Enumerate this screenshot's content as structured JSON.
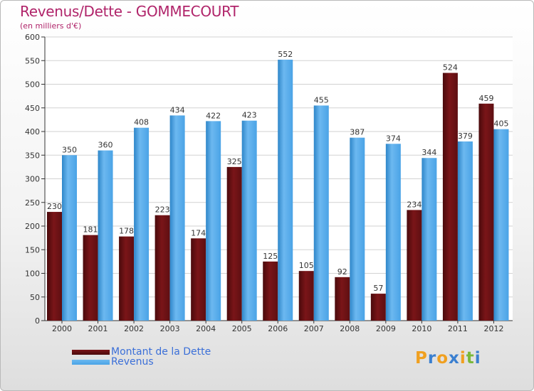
{
  "header": {
    "title": "Revenus/Dette - GOMMECOURT",
    "subtitle": "(en milliers d'€)"
  },
  "colors": {
    "dette": "#7a1518",
    "revenus": "#4aa3e6",
    "title": "#b0246a",
    "legend_text": "#3b6fd8"
  },
  "legend": {
    "dette_label": "Montant de la Dette",
    "revenus_label": "Revenus"
  },
  "logo": {
    "letters": [
      "P",
      "r",
      "o",
      "x",
      "i",
      "t",
      "i"
    ],
    "letter_colors": [
      "#f0a020",
      "#3a7fd0",
      "#f0a020",
      "#3a7fd0",
      "#f0a020",
      "#7ab83a",
      "#3a7fd0"
    ]
  },
  "chart_data": {
    "type": "bar",
    "categories": [
      "2000",
      "2001",
      "2002",
      "2003",
      "2004",
      "2005",
      "2006",
      "2007",
      "2008",
      "2009",
      "2010",
      "2011",
      "2012"
    ],
    "series": [
      {
        "name": "Montant de la Dette",
        "values": [
          230,
          181,
          178,
          223,
          174,
          325,
          125,
          105,
          92,
          57,
          234,
          524,
          459
        ]
      },
      {
        "name": "Revenus",
        "values": [
          350,
          360,
          408,
          434,
          422,
          423,
          552,
          455,
          387,
          374,
          344,
          379,
          405
        ]
      }
    ],
    "ylim": [
      0,
      600
    ],
    "yticks": [
      0,
      50,
      100,
      150,
      200,
      250,
      300,
      350,
      400,
      450,
      500,
      550,
      600
    ],
    "grid": true,
    "legend_position": "bottom-left"
  }
}
